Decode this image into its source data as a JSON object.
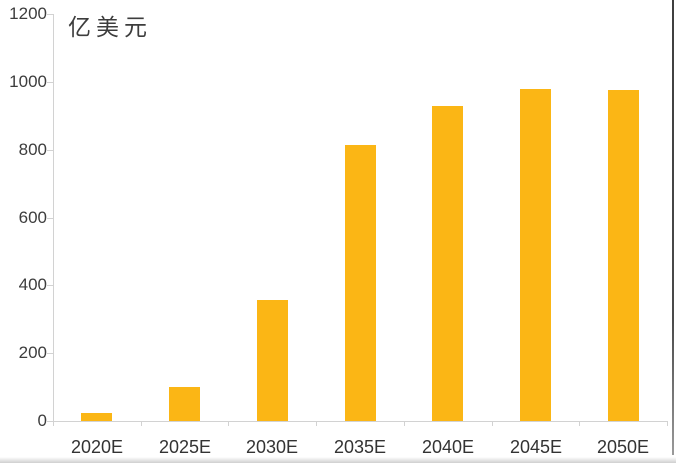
{
  "chart_data": {
    "type": "bar",
    "title": "",
    "unit_label": "亿美元",
    "categories": [
      "2020E",
      "2025E",
      "2030E",
      "2035E",
      "2040E",
      "2045E",
      "2050E"
    ],
    "values": [
      25,
      100,
      358,
      815,
      930,
      980,
      975
    ],
    "series_count": 1,
    "xlabel": "",
    "ylabel": "亿美元",
    "ylim": [
      0,
      1200
    ],
    "ytick_interval": 200,
    "yticks": [
      0,
      200,
      400,
      600,
      800,
      1000,
      1200
    ],
    "grid": "off",
    "legend": "none",
    "colors": {
      "bar": "#FBB615",
      "axis": "#D2D2D2",
      "tick_text": "#3D3D3D",
      "background": "#FFFFFF"
    }
  }
}
